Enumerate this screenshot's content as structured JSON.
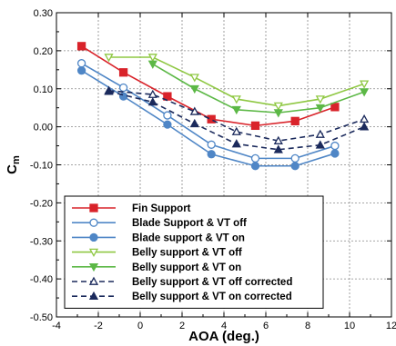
{
  "chart_data": {
    "type": "line",
    "xlabel": "AOA (deg.)",
    "ylabel_main": "C",
    "ylabel_sub": "m",
    "xlim": [
      -4,
      12
    ],
    "ylim": [
      -0.5,
      0.3
    ],
    "x_ticks": [
      -4,
      -2,
      0,
      2,
      4,
      6,
      8,
      10,
      12
    ],
    "x_tick_labels": [
      "-4",
      "-2",
      "0",
      "2",
      "4",
      "6",
      "8",
      "10",
      "12"
    ],
    "y_ticks": [
      -0.5,
      -0.4,
      -0.3,
      -0.2,
      -0.1,
      0.0,
      0.1,
      0.2,
      0.3
    ],
    "y_tick_labels": [
      "-0.50",
      "-0.40",
      "-0.30",
      "-0.20",
      "-0.10",
      "0.00",
      "0.10",
      "0.20",
      "0.30"
    ],
    "grid": true,
    "legend_position": "bottom-left",
    "series": [
      {
        "name": "Fin Support",
        "color": "#d9232a",
        "marker": "square",
        "marker_fill": "filled",
        "line_style": "solid",
        "x": [
          -2.8,
          -0.8,
          1.3,
          3.4,
          5.5,
          7.4,
          9.3
        ],
        "y": [
          0.212,
          0.143,
          0.08,
          0.02,
          0.003,
          0.015,
          0.052
        ]
      },
      {
        "name": "Blade Support & VT off",
        "color": "#4f86c6",
        "marker": "circle",
        "marker_fill": "open",
        "line_style": "solid",
        "x": [
          -2.8,
          -0.8,
          1.3,
          3.4,
          5.5,
          7.4,
          9.3
        ],
        "y": [
          0.167,
          0.103,
          0.03,
          -0.047,
          -0.083,
          -0.083,
          -0.05
        ]
      },
      {
        "name": "Blade support & VT on",
        "color": "#4f86c6",
        "marker": "circle",
        "marker_fill": "filled",
        "line_style": "solid",
        "x": [
          -2.8,
          -0.8,
          1.3,
          3.4,
          5.5,
          7.4,
          9.3
        ],
        "y": [
          0.148,
          0.08,
          0.006,
          -0.072,
          -0.103,
          -0.103,
          -0.07
        ]
      },
      {
        "name": "Belly support & VT off",
        "color": "#8fc843",
        "marker": "triangle-down",
        "marker_fill": "open",
        "line_style": "solid",
        "x": [
          -1.5,
          0.6,
          2.6,
          4.6,
          6.6,
          8.6,
          10.7
        ],
        "y": [
          0.183,
          0.183,
          0.13,
          0.073,
          0.055,
          0.073,
          0.113
        ]
      },
      {
        "name": "Belly support & VT on",
        "color": "#5cb846",
        "marker": "triangle-down",
        "marker_fill": "filled",
        "line_style": "solid",
        "x": [
          0.6,
          2.6,
          4.6,
          6.6,
          8.6,
          10.7
        ],
        "y": [
          0.165,
          0.1,
          0.045,
          0.037,
          0.05,
          0.092
        ]
      },
      {
        "name": "Belly support & VT off corrected",
        "color": "#1b2a5c",
        "marker": "triangle-up",
        "marker_fill": "open",
        "line_style": "dashed",
        "x": [
          -1.5,
          0.6,
          2.6,
          4.6,
          6.6,
          8.6,
          10.7
        ],
        "y": [
          0.095,
          0.085,
          0.04,
          -0.013,
          -0.037,
          -0.02,
          0.02
        ]
      },
      {
        "name": "Belly support & VT on corrected",
        "color": "#1b2a5c",
        "marker": "triangle-up",
        "marker_fill": "filled",
        "line_style": "dashed",
        "x": [
          -1.5,
          0.6,
          2.6,
          4.6,
          6.6,
          8.6,
          10.7
        ],
        "y": [
          0.093,
          0.065,
          0.008,
          -0.045,
          -0.06,
          -0.048,
          0.0
        ]
      }
    ]
  }
}
